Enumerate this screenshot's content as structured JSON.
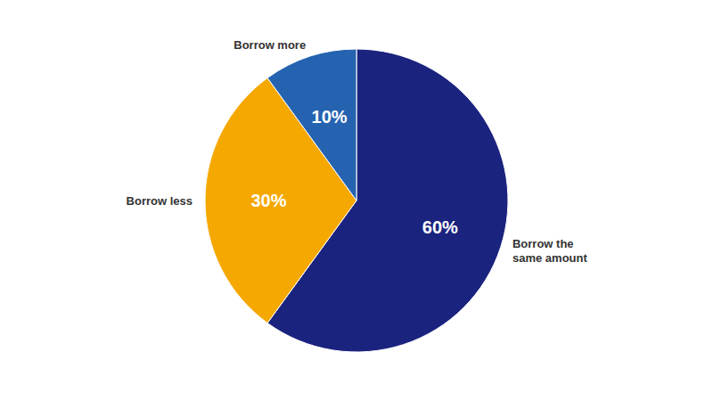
{
  "chart_data": {
    "type": "pie",
    "categories": [
      "Borrow the\nsame amount",
      "Borrow less",
      "Borrow more"
    ],
    "values": [
      60,
      30,
      10
    ],
    "value_labels": [
      "60%",
      "30%",
      "10%"
    ],
    "colors": [
      "#1a237e",
      "#f5a800",
      "#2563b0"
    ],
    "data_labels": true
  }
}
